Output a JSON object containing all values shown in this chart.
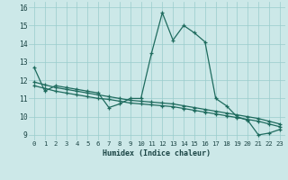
{
  "xlabel": "Humidex (Indice chaleur)",
  "background_color": "#cce8e8",
  "line_color": "#1e6b5e",
  "grid_color": "#99cccc",
  "xlim": [
    -0.5,
    23.5
  ],
  "ylim": [
    8.7,
    16.3
  ],
  "yticks": [
    9,
    10,
    11,
    12,
    13,
    14,
    15,
    16
  ],
  "xticks": [
    0,
    1,
    2,
    3,
    4,
    5,
    6,
    7,
    8,
    9,
    10,
    11,
    12,
    13,
    14,
    15,
    16,
    17,
    18,
    19,
    20,
    21,
    22,
    23
  ],
  "series1_x": [
    0,
    1,
    2,
    3,
    4,
    5,
    6,
    7,
    8,
    9,
    10,
    11,
    12,
    13,
    14,
    15,
    16,
    17,
    18,
    19,
    20,
    21,
    22,
    23
  ],
  "series1_y": [
    12.7,
    11.4,
    11.7,
    11.6,
    11.5,
    11.4,
    11.3,
    10.5,
    10.7,
    11.0,
    11.0,
    13.5,
    15.7,
    14.2,
    15.0,
    14.6,
    14.1,
    11.0,
    10.6,
    10.0,
    9.8,
    9.0,
    9.1,
    9.3
  ],
  "series2_x": [
    0,
    1,
    2,
    3,
    4,
    5,
    6,
    7,
    8,
    9,
    10,
    11,
    12,
    13,
    14,
    15,
    16,
    17,
    18,
    19,
    20,
    21,
    22,
    23
  ],
  "series2_y": [
    11.9,
    11.75,
    11.6,
    11.5,
    11.4,
    11.3,
    11.2,
    11.1,
    11.0,
    10.9,
    10.85,
    10.8,
    10.75,
    10.7,
    10.6,
    10.5,
    10.4,
    10.3,
    10.2,
    10.1,
    10.0,
    9.9,
    9.75,
    9.6
  ],
  "series3_x": [
    0,
    1,
    2,
    3,
    4,
    5,
    6,
    7,
    8,
    9,
    10,
    11,
    12,
    13,
    14,
    15,
    16,
    17,
    18,
    19,
    20,
    21,
    22,
    23
  ],
  "series3_y": [
    11.7,
    11.55,
    11.4,
    11.3,
    11.2,
    11.1,
    11.0,
    10.95,
    10.85,
    10.75,
    10.7,
    10.65,
    10.6,
    10.55,
    10.45,
    10.35,
    10.25,
    10.15,
    10.05,
    9.95,
    9.85,
    9.75,
    9.6,
    9.45
  ]
}
